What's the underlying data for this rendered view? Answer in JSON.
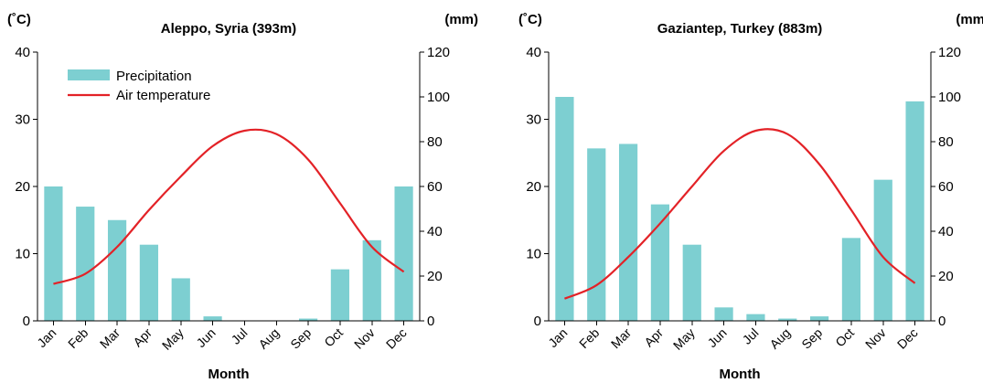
{
  "chart_data": [
    {
      "type": "bar",
      "title": "Aleppo, Syria (393m)",
      "categories": [
        "Jan",
        "Feb",
        "Mar",
        "Apr",
        "May",
        "Jun",
        "Jul",
        "Aug",
        "Sep",
        "Oct",
        "Nov",
        "Dec"
      ],
      "left_axis_unit": "(˚C)",
      "right_axis_unit": "(mm)",
      "xlabel": "Month",
      "ylim_left": [
        0,
        40
      ],
      "ylim_right": [
        0,
        120
      ],
      "yticks_left": [
        0,
        10,
        20,
        30,
        40
      ],
      "yticks_right": [
        0,
        20,
        40,
        60,
        80,
        100,
        120
      ],
      "series": [
        {
          "name": "Precipitation",
          "kind": "bar",
          "axis": "right",
          "color": "#7dcfd1",
          "values": [
            60,
            51,
            45,
            34,
            19,
            2,
            0,
            0,
            1,
            23,
            36,
            60
          ]
        },
        {
          "name": "Air temperature",
          "kind": "line",
          "axis": "left",
          "color": "#e32227",
          "values": [
            5.5,
            7.0,
            11.0,
            16.5,
            21.5,
            26.0,
            28.3,
            27.8,
            24.0,
            17.5,
            11.0,
            7.3
          ]
        }
      ],
      "legend": {
        "placement": "top-left",
        "items": [
          "Precipitation",
          "Air temperature"
        ]
      }
    },
    {
      "type": "bar",
      "title": "Gaziantep, Turkey (883m)",
      "categories": [
        "Jan",
        "Feb",
        "Mar",
        "Apr",
        "May",
        "Jun",
        "Jul",
        "Aug",
        "Sep",
        "Oct",
        "Nov",
        "Dec"
      ],
      "left_axis_unit": "(˚C)",
      "right_axis_unit": "(mm)",
      "xlabel": "Month",
      "ylim_left": [
        0,
        40
      ],
      "ylim_right": [
        0,
        120
      ],
      "yticks_left": [
        0,
        10,
        20,
        30,
        40
      ],
      "yticks_right": [
        0,
        20,
        40,
        60,
        80,
        100,
        120
      ],
      "series": [
        {
          "name": "Precipitation",
          "kind": "bar",
          "axis": "right",
          "color": "#7dcfd1",
          "values": [
            100,
            77,
            79,
            52,
            34,
            6,
            3,
            1,
            2,
            37,
            63,
            98
          ]
        },
        {
          "name": "Air temperature",
          "kind": "line",
          "axis": "left",
          "color": "#e32227",
          "values": [
            3.3,
            5.3,
            9.5,
            14.5,
            20.0,
            25.3,
            28.3,
            27.8,
            23.3,
            16.5,
            9.5,
            5.6
          ]
        }
      ]
    }
  ]
}
